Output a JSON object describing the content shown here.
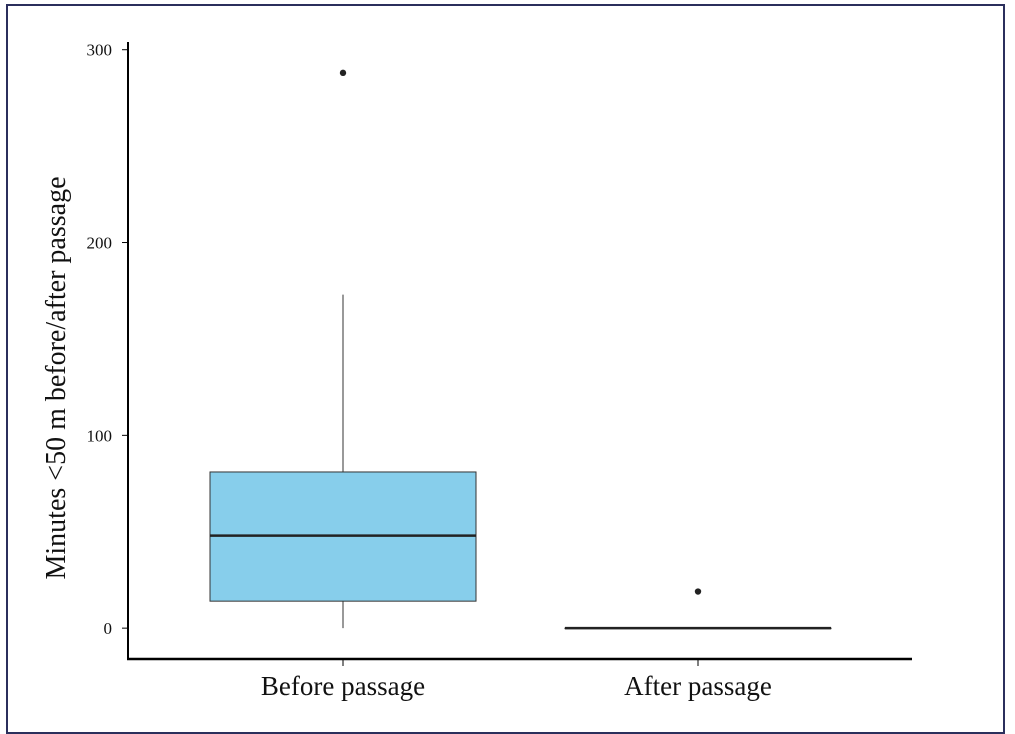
{
  "chart_data": {
    "type": "box",
    "title": "",
    "xlabel": "",
    "ylabel": "Minutes <50 m before/after passage",
    "ylim": [
      -16,
      304
    ],
    "yticks": [
      0,
      100,
      200,
      300
    ],
    "ytick_labels": [
      "0",
      "100",
      "200",
      "300"
    ],
    "grid": false,
    "legend": "none",
    "categories": [
      "Before passage",
      "After passage"
    ],
    "boxes": [
      {
        "category": "Before passage",
        "whisker_low": 0,
        "q1": 14,
        "median": 48,
        "q3": 81,
        "whisker_high": 173,
        "outliers": [
          288
        ],
        "fill": "#87CEEB"
      },
      {
        "category": "After passage",
        "whisker_low": 0,
        "q1": 0,
        "median": 0,
        "q3": 0,
        "whisker_high": 0,
        "outliers": [
          19
        ],
        "fill": "#87CEEB"
      }
    ],
    "colors": {
      "box_edge": "#333333",
      "median": "#222222",
      "point": "#222222",
      "axis": "#000000"
    }
  }
}
